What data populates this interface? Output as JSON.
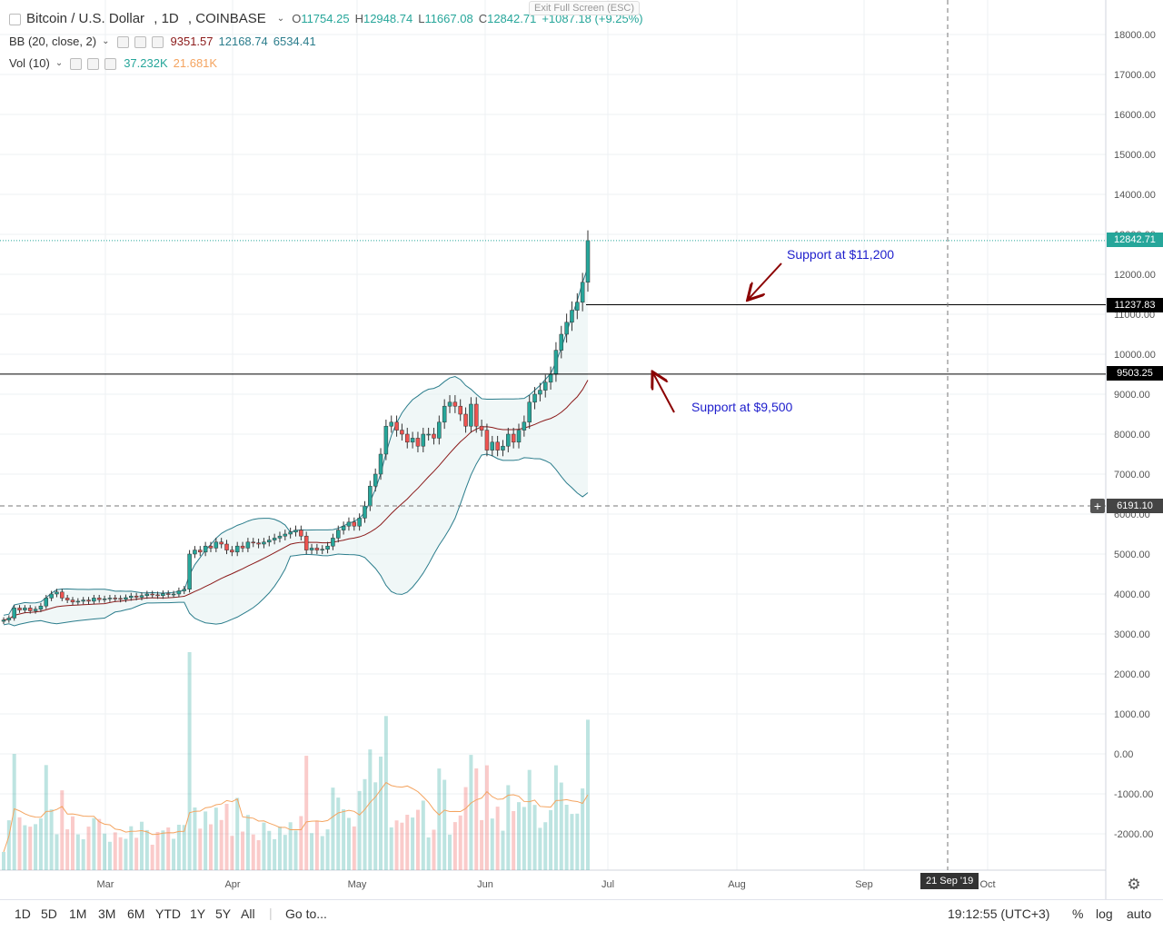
{
  "header": {
    "symbol": "Bitcoin / U.S. Dollar",
    "interval": "1D",
    "exchange": "COINBASE",
    "open_label": "O",
    "open": "11754.25",
    "high_label": "H",
    "high": "12948.74",
    "low_label": "L",
    "low": "11667.08",
    "close_label": "C",
    "close": "12842.71",
    "change": "+1087.18 (+9.25%)",
    "exit_fullscreen": "Exit Full Screen (ESC)"
  },
  "indicators": {
    "bb": {
      "label": "BB (20, close, 2)",
      "basis": "9351.57",
      "upper": "12168.74",
      "lower": "6534.41"
    },
    "vol": {
      "label": "Vol (10)",
      "volume": "37.232K",
      "ma": "21.681K"
    }
  },
  "price_tags": {
    "last": "12842.71",
    "level_upper": "11237.83",
    "level_lower": "9503.25",
    "crosshair": "6191.10"
  },
  "annotations": {
    "upper": "Support at $11,200",
    "lower": "Support at $9,500"
  },
  "crosshair_date": "21 Sep '19",
  "bottom_bar": {
    "ranges": [
      "1D",
      "5D",
      "1M",
      "3M",
      "6M",
      "YTD",
      "1Y",
      "5Y",
      "All"
    ],
    "goto": "Go to...",
    "time": "19:12:55 (UTC+3)",
    "percent": "%",
    "log": "log",
    "auto": "auto"
  },
  "colors": {
    "up": "#26a69a",
    "down": "#ef5350",
    "bb_band": "#2b7d8c",
    "bb_basis": "#8b1a1a",
    "vol_ma": "#f4a460",
    "arrow": "#8b0000",
    "annotation": "#1e1ecc"
  },
  "icons": [
    "collapse-icon",
    "chevron-down-icon",
    "eye-icon",
    "gear-icon",
    "close-icon",
    "settings-icon",
    "plus-icon"
  ],
  "chart_data": {
    "type": "candlestick",
    "title": "Bitcoin / U.S. Dollar, 1D, COINBASE",
    "xaxis_labels": [
      "Mar",
      "Apr",
      "May",
      "Jun",
      "Jul",
      "Aug",
      "Sep",
      "Oct"
    ],
    "yaxis_labels": [
      "18000.00",
      "17000.00",
      "16000.00",
      "15000.00",
      "14000.00",
      "13000.00",
      "12000.00",
      "11000.00",
      "10000.00",
      "9000.00",
      "8000.00",
      "7000.00",
      "6000.00",
      "5000.00",
      "4000.00",
      "3000.00",
      "2000.00",
      "1000.00",
      "0.00",
      "-1000.00",
      "-2000.00"
    ],
    "ylim": [
      -2600,
      18300
    ],
    "grid": true,
    "horizontal_lines": [
      11237.83,
      9503.25
    ],
    "last_price_line": 12842.71,
    "candles_close": [
      3350,
      3400,
      3650,
      3600,
      3650,
      3580,
      3620,
      3700,
      3900,
      4000,
      4050,
      3900,
      3850,
      3800,
      3820,
      3850,
      3820,
      3900,
      3860,
      3880,
      3900,
      3890,
      3870,
      3910,
      3950,
      3920,
      3960,
      4000,
      3980,
      3960,
      4010,
      3990,
      4000,
      4080,
      4120,
      5000,
      5100,
      5050,
      5200,
      5150,
      5300,
      5250,
      5100,
      5050,
      5200,
      5150,
      5300,
      5280,
      5250,
      5300,
      5350,
      5400,
      5450,
      5500,
      5550,
      5600,
      5450,
      5100,
      5150,
      5100,
      5120,
      5200,
      5400,
      5600,
      5700,
      5800,
      5700,
      5900,
      6200,
      6700,
      7000,
      7500,
      8200,
      8300,
      8100,
      8000,
      7800,
      7900,
      7700,
      8000,
      8000,
      7900,
      8300,
      8700,
      8800,
      8700,
      8500,
      8200,
      8750,
      8200,
      8100,
      7600,
      7800,
      7600,
      7700,
      8000,
      7800,
      8100,
      8300,
      8800,
      9000,
      9100,
      9300,
      9500,
      10100,
      10500,
      10800,
      11100,
      11300,
      11800,
      12842
    ],
    "bb_basis_end": 9351.57,
    "bb_upper_end": 12168.74,
    "bb_lower_end": 6534.41,
    "volume_ma_label": "21.681K",
    "volume_label": "37.232K"
  }
}
